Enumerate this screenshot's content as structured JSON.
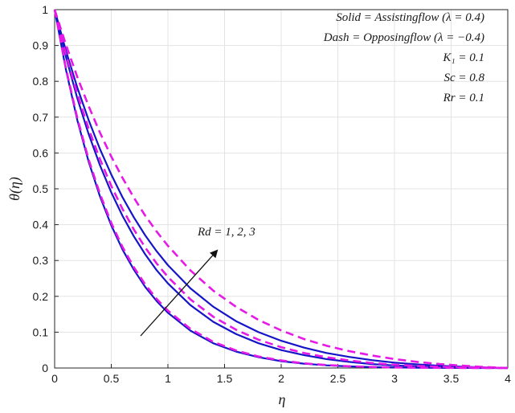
{
  "chart_data": {
    "type": "line",
    "xlabel": "η",
    "ylabel": "θ(η)",
    "xlim": [
      0,
      4
    ],
    "ylim": [
      0,
      1
    ],
    "xticks": [
      0,
      0.5,
      1,
      1.5,
      2,
      2.5,
      3,
      3.5,
      4
    ],
    "yticks": [
      0,
      0.1,
      0.2,
      0.3,
      0.4,
      0.5,
      0.6,
      0.7,
      0.8,
      0.9,
      1
    ],
    "xtick_labels": [
      "0",
      "0.5",
      "1",
      "1.5",
      "2",
      "2.5",
      "3",
      "3.5",
      "4"
    ],
    "ytick_labels": [
      "0",
      "0.1",
      "0.2",
      "0.3",
      "0.4",
      "0.5",
      "0.6",
      "0.7",
      "0.8",
      "0.9",
      "1"
    ],
    "grid": true,
    "x": [
      0,
      0.1,
      0.2,
      0.3,
      0.4,
      0.5,
      0.6,
      0.7,
      0.8,
      0.9,
      1.0,
      1.2,
      1.4,
      1.6,
      1.8,
      2.0,
      2.2,
      2.4,
      2.6,
      2.8,
      3.0,
      3.2,
      3.4,
      3.6,
      3.8,
      4.0
    ],
    "series": [
      {
        "style": "solid",
        "color": "#1515c8",
        "values": [
          1.0,
          0.832,
          0.692,
          0.576,
          0.479,
          0.398,
          0.33,
          0.274,
          0.226,
          0.187,
          0.154,
          0.104,
          0.069,
          0.046,
          0.03,
          0.019,
          0.012,
          0.0075,
          0.0045,
          0.0026,
          0.0015,
          0.0008,
          0.0004,
          0.0002,
          0.0001,
          0.0
        ]
      },
      {
        "style": "solid",
        "color": "#1515c8",
        "values": [
          1.0,
          0.868,
          0.753,
          0.653,
          0.566,
          0.49,
          0.424,
          0.367,
          0.317,
          0.273,
          0.236,
          0.175,
          0.129,
          0.095,
          0.069,
          0.05,
          0.036,
          0.025,
          0.017,
          0.011,
          0.0072,
          0.0045,
          0.0026,
          0.0014,
          0.0006,
          0.0
        ]
      },
      {
        "style": "solid",
        "color": "#1515c8",
        "values": [
          1.0,
          0.885,
          0.783,
          0.692,
          0.611,
          0.54,
          0.476,
          0.42,
          0.37,
          0.326,
          0.287,
          0.222,
          0.171,
          0.131,
          0.1,
          0.076,
          0.057,
          0.042,
          0.031,
          0.022,
          0.015,
          0.01,
          0.0062,
          0.0035,
          0.0015,
          0.0
        ]
      },
      {
        "style": "dash",
        "color": "#e619e6",
        "values": [
          1.0,
          0.836,
          0.698,
          0.582,
          0.486,
          0.405,
          0.337,
          0.281,
          0.233,
          0.193,
          0.16,
          0.109,
          0.073,
          0.049,
          0.032,
          0.021,
          0.013,
          0.0082,
          0.005,
          0.0029,
          0.0016,
          0.0009,
          0.0004,
          0.0002,
          0.0001,
          0.0
        ]
      },
      {
        "style": "dash",
        "color": "#e619e6",
        "values": [
          1.0,
          0.875,
          0.765,
          0.668,
          0.583,
          0.508,
          0.443,
          0.386,
          0.336,
          0.292,
          0.254,
          0.191,
          0.143,
          0.107,
          0.079,
          0.058,
          0.042,
          0.03,
          0.021,
          0.014,
          0.0093,
          0.0058,
          0.0034,
          0.0018,
          0.0008,
          0.0
        ]
      },
      {
        "style": "dash",
        "color": "#e619e6",
        "values": [
          1.0,
          0.902,
          0.812,
          0.731,
          0.657,
          0.59,
          0.53,
          0.475,
          0.425,
          0.381,
          0.341,
          0.272,
          0.216,
          0.171,
          0.134,
          0.105,
          0.081,
          0.062,
          0.047,
          0.035,
          0.025,
          0.017,
          0.011,
          0.0065,
          0.0028,
          0.0
        ]
      }
    ],
    "annotations": {
      "line1": "Solid = Assistingflow (λ = 0.4)",
      "line2": "Dash = Opposingflow (λ = −0.4)",
      "line3": "K₁ = 0.1",
      "line4": "Sc = 0.8",
      "line5": "Rr = 0.1",
      "arrow_label": "Rd = 1, 2, 3"
    }
  }
}
